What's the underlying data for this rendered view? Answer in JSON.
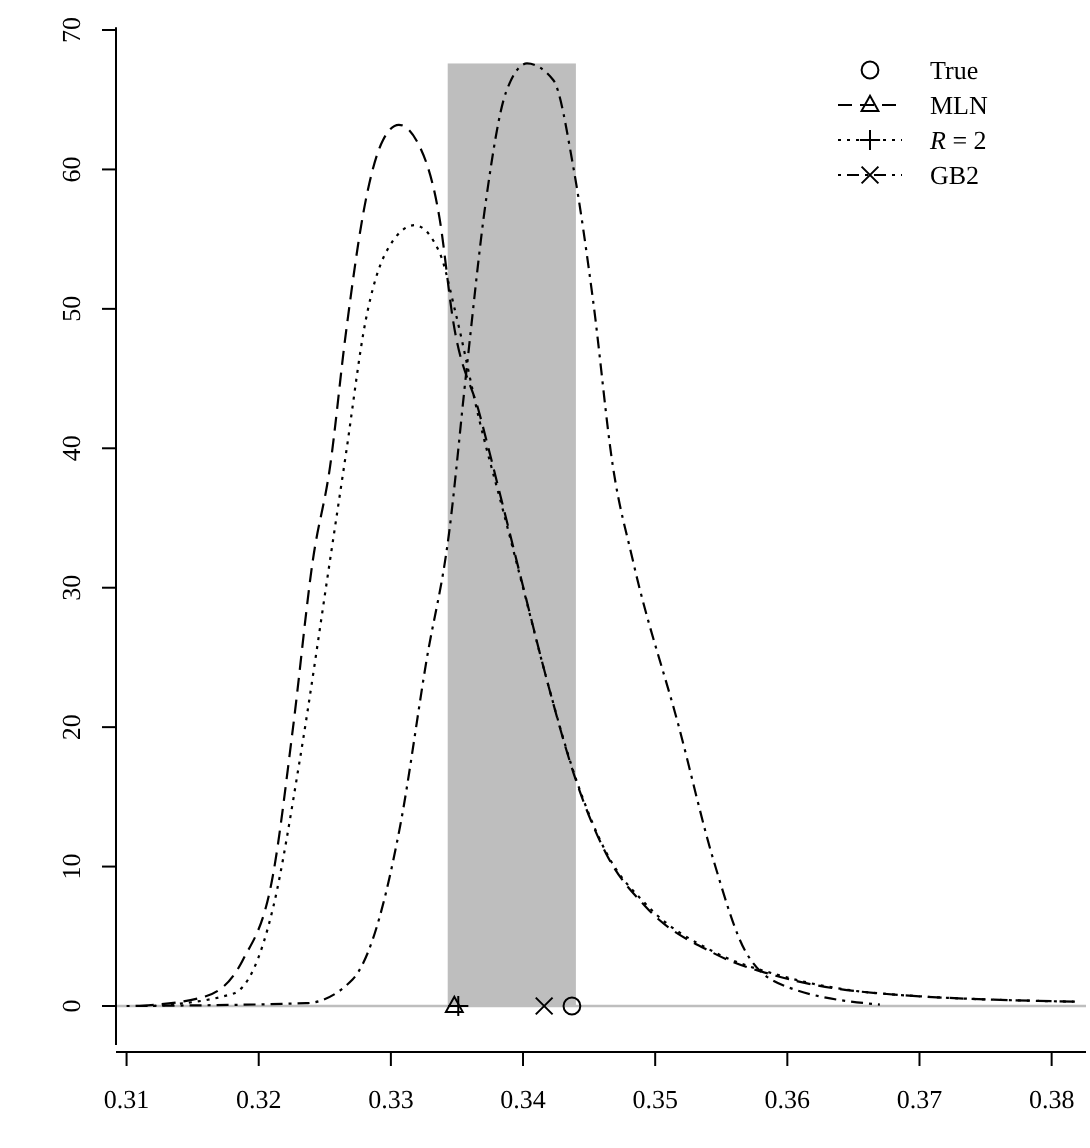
{
  "chart_data": {
    "type": "line",
    "xlim": [
      0.3092,
      0.3826
    ],
    "ylim": [
      -2.8,
      70.2
    ],
    "xticks": [
      0.31,
      0.32,
      0.33,
      0.34,
      0.35,
      0.36,
      0.37,
      0.38
    ],
    "yticks": [
      0,
      10,
      20,
      30,
      40,
      50,
      60,
      70
    ],
    "grid": false,
    "legend": "top right",
    "bands": [
      {
        "axis": "x",
        "from": 0.3343,
        "to": 0.344,
        "color": "#bebebe"
      }
    ],
    "ref_lines": [
      {
        "axis": "y",
        "value": 0,
        "color": "#bebebe"
      }
    ],
    "series": [
      {
        "name": "True",
        "type": "scatter",
        "marker": "circle",
        "color": "#000000",
        "x": [
          0.3437
        ],
        "values": [
          0
        ]
      },
      {
        "name": "MLN",
        "line_style": "dashed",
        "color": "#000000",
        "x": [
          0.311,
          0.316,
          0.3188,
          0.3211,
          0.3226,
          0.3241,
          0.3254,
          0.3266,
          0.3281,
          0.3294,
          0.3306,
          0.3322,
          0.3337,
          0.3347,
          0.3367,
          0.3385,
          0.34,
          0.3418,
          0.344,
          0.3463,
          0.3493,
          0.3544,
          0.3594,
          0.367,
          0.3821
        ],
        "values": [
          0,
          0.7,
          3.3,
          9.5,
          20,
          32,
          38.7,
          48.3,
          57.8,
          62.1,
          63.2,
          61.6,
          56.4,
          49.2,
          42.5,
          35.8,
          30.1,
          23.4,
          16.2,
          10.9,
          7.1,
          3.8,
          2.1,
          0.9,
          0.3
        ]
      },
      {
        "type": "scatter",
        "marker": "triangle",
        "color": "#000000",
        "x": [
          0.3348
        ],
        "values": [
          0
        ]
      },
      {
        "name": "R = 2",
        "line_style": "dotted",
        "color": "#000000",
        "x": [
          0.312,
          0.3181,
          0.3211,
          0.3231,
          0.3254,
          0.3266,
          0.3281,
          0.3296,
          0.3318,
          0.3337,
          0.3349,
          0.3367,
          0.3385,
          0.34,
          0.3418,
          0.344,
          0.3463,
          0.3493,
          0.3544,
          0.3594,
          0.367,
          0.3821
        ],
        "values": [
          0,
          0.9,
          7.1,
          17.6,
          32,
          39.6,
          49.2,
          54,
          56,
          54,
          49.7,
          42,
          35.5,
          30,
          23.4,
          16.3,
          11,
          7.3,
          3.9,
          2.2,
          0.9,
          0.3
        ]
      },
      {
        "type": "scatter",
        "marker": "cross",
        "color": "#000000",
        "x": [
          0.3351
        ],
        "values": [
          0
        ]
      },
      {
        "name": "GB2",
        "line_style": "dashdot",
        "color": "#000000",
        "x": [
          0.31,
          0.3236,
          0.3271,
          0.3286,
          0.3307,
          0.3327,
          0.3344,
          0.3357,
          0.3372,
          0.3387,
          0.3403,
          0.3423,
          0.3438,
          0.3453,
          0.3468,
          0.3483,
          0.3518,
          0.3544,
          0.3569,
          0.3599,
          0.367
        ],
        "values": [
          0,
          0.2,
          1.9,
          4.7,
          12.9,
          24.8,
          33.9,
          45.4,
          57.8,
          65.5,
          67.6,
          66.4,
          60.2,
          50.6,
          38.7,
          32,
          20,
          10.5,
          3.8,
          1.4,
          0.1
        ]
      },
      {
        "type": "scatter",
        "marker": "x",
        "color": "#000000",
        "x": [
          0.3416
        ],
        "values": [
          0
        ]
      }
    ]
  }
}
